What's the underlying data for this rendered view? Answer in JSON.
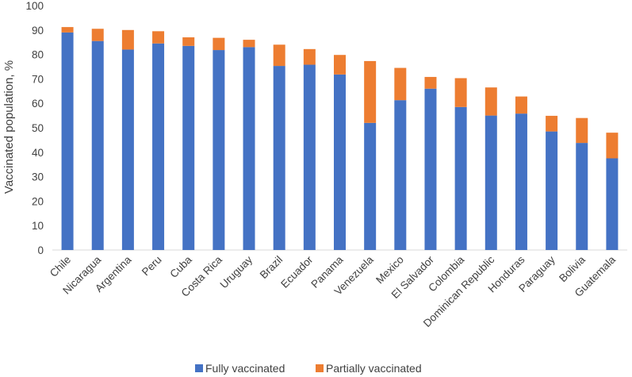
{
  "chart_data": {
    "type": "bar",
    "stacked": true,
    "title": "",
    "xlabel": "",
    "ylabel": "Vaccinated population, %",
    "ylim": [
      0,
      100
    ],
    "y_ticks": [
      0,
      10,
      20,
      30,
      40,
      50,
      60,
      70,
      80,
      90,
      100
    ],
    "grid": false,
    "legend_position": "bottom",
    "categories": [
      "Chile",
      "Nicaragua",
      "Argentina",
      "Peru",
      "Cuba",
      "Costa Rica",
      "Uruguay",
      "Brazil",
      "Ecuador",
      "Panama",
      "Venezuela",
      "Mexico",
      "El Salvador",
      "Colombia",
      "Dominican Republic",
      "Honduras",
      "Paraguay",
      "Bolivia",
      "Guatemala"
    ],
    "series": [
      {
        "name": "Fully vaccinated",
        "color": "#4472C4",
        "values": [
          89,
          85.5,
          82,
          84.5,
          83.5,
          81.8,
          83,
          75.3,
          75.8,
          71.8,
          52,
          61.3,
          66,
          58.5,
          55,
          55.8,
          48.5,
          43.8,
          37.5
        ]
      },
      {
        "name": "Partially vaccinated",
        "color": "#ED7D31",
        "values": [
          2.2,
          5,
          8,
          5,
          3.5,
          5,
          3,
          8.7,
          6.4,
          8,
          25.3,
          13.2,
          4.8,
          11.8,
          11.5,
          7,
          6.4,
          10.2,
          10.5
        ]
      }
    ]
  }
}
